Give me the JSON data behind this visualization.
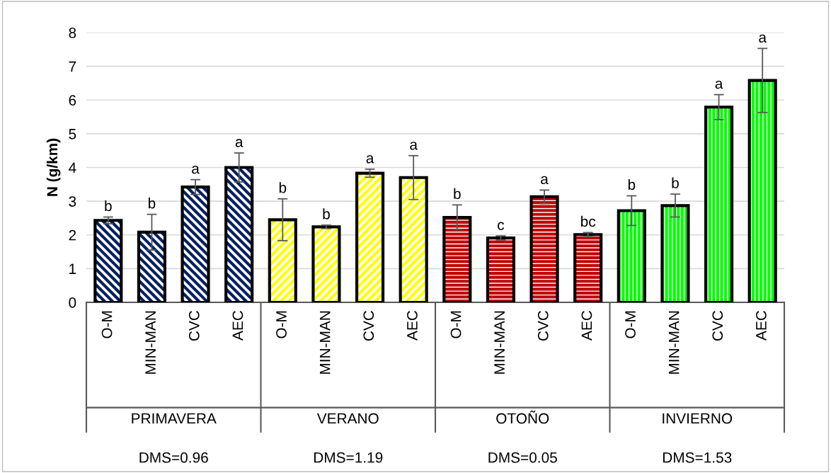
{
  "chart_data": {
    "type": "bar",
    "ylabel": "N (g/km)",
    "categories": [
      "O-M",
      "MIN-MAN",
      "CVC",
      "AEC",
      "O-M",
      "MIN-MAN",
      "CVC",
      "AEC",
      "O-M",
      "MIN-MAN",
      "CVC",
      "AEC",
      "O-M",
      "MIN-MAN",
      "CVC",
      "AEC"
    ],
    "values": [
      2.43,
      2.08,
      3.42,
      4.0,
      2.45,
      2.24,
      3.83,
      3.7,
      2.52,
      1.91,
      3.13,
      2.01,
      2.72,
      2.87,
      5.79,
      6.58
    ],
    "errors": [
      0.1,
      0.53,
      0.22,
      0.43,
      0.62,
      0.05,
      0.12,
      0.65,
      0.37,
      0.06,
      0.2,
      0.06,
      0.44,
      0.34,
      0.37,
      0.95
    ],
    "colors": [
      "#002060",
      "#002060",
      "#002060",
      "#002060",
      "#ffff00",
      "#ffff00",
      "#ffff00",
      "#ffff00",
      "#c00000",
      "#c00000",
      "#c00000",
      "#c00000",
      "#00ff00",
      "#00ff00",
      "#00ff00",
      "#00ff00"
    ],
    "value_labels": [
      "b",
      "b",
      "a",
      "a",
      "b",
      "b",
      "a",
      "a",
      "b",
      "c",
      "a",
      "bc",
      "b",
      "b",
      "a",
      "a"
    ],
    "ylim": [
      0,
      8
    ],
    "yticks": [
      0,
      1,
      2,
      3,
      4,
      5,
      6,
      7,
      8
    ],
    "grid": "y",
    "legend": false,
    "annotations": [
      "PRIMAVERA",
      "VERANO",
      "OTOÑO",
      "INVIERNO",
      "DMS=0.96",
      "DMS=1.19",
      "DMS=0.05",
      "DMS=1.53"
    ]
  }
}
